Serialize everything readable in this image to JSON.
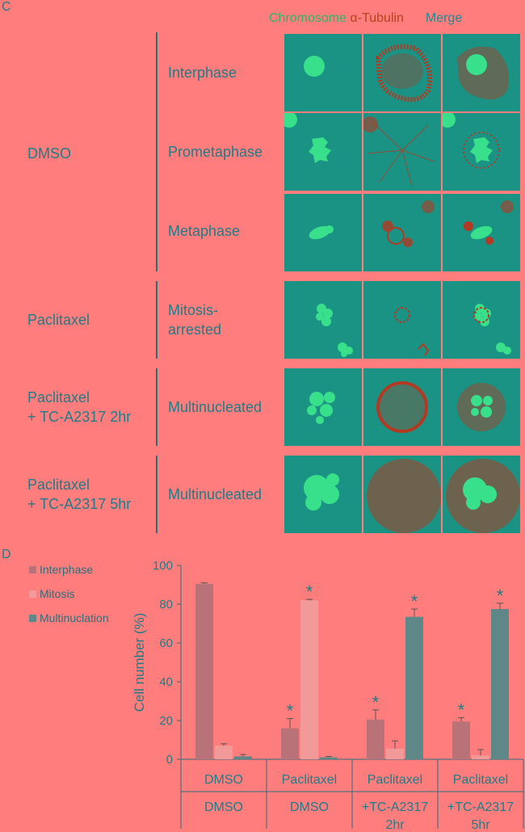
{
  "panel_c_label": "C",
  "panel_d_label": "D",
  "column_headers": {
    "chromosome": "Chromosome",
    "tubulin": "α-Tubulin",
    "merge": "Merge"
  },
  "groups": [
    {
      "label": "DMSO"
    },
    {
      "label": "Paclitaxel"
    },
    {
      "label_line1": "Paclitaxel",
      "label_line2": "+ TC-A2317 2hr"
    },
    {
      "label_line1": "Paclitaxel",
      "label_line2": "+ TC-A2317 5hr"
    }
  ],
  "stages": {
    "interphase": "Interphase",
    "prometaphase": "Prometaphase",
    "metaphase": "Metaphase",
    "mitosis_arrested_1": "Mitosis-",
    "mitosis_arrested_2": "arrested",
    "multinucleated_2hr": "Multinucleated",
    "multinucleated_5hr": "Multinucleated"
  },
  "colors": {
    "background": "#ff7e7d",
    "tile_bg": "#1a9284",
    "chromosome": "#39e08c",
    "tubulin": "#b33a22",
    "interphase": "#b97378",
    "mitosis": "#f29a99",
    "multinucleation": "#5e8888"
  },
  "chart_data": {
    "type": "bar",
    "ylabel": "Cell number (%)",
    "ylim": [
      0,
      100
    ],
    "yticks": [
      0,
      20,
      40,
      60,
      80,
      100
    ],
    "categories_line1": [
      "DMSO",
      "Paclitaxel",
      "Paclitaxel",
      "Paclitaxel"
    ],
    "categories_line2": [
      "DMSO",
      "DMSO",
      "+TC-A2317",
      "+TC-A2317"
    ],
    "categories_line3": [
      "",
      "",
      "2hr",
      "5hr"
    ],
    "legend_position": "top-left",
    "series": [
      {
        "name": "Interphase",
        "values": [
          90.5,
          16,
          20.5,
          19.5
        ],
        "errors": [
          0.5,
          5,
          5,
          2
        ],
        "significant": [
          false,
          true,
          true,
          true
        ]
      },
      {
        "name": "Mitosis",
        "values": [
          7,
          82,
          5.5,
          2
        ],
        "errors": [
          1,
          0.5,
          4,
          3
        ],
        "significant": [
          false,
          true,
          false,
          false
        ]
      },
      {
        "name": "Multinuclation",
        "values": [
          1.5,
          1,
          73.5,
          77.5
        ],
        "errors": [
          1,
          0.5,
          4,
          3
        ],
        "significant": [
          false,
          false,
          true,
          true
        ]
      }
    ],
    "significance_marker": "*"
  }
}
